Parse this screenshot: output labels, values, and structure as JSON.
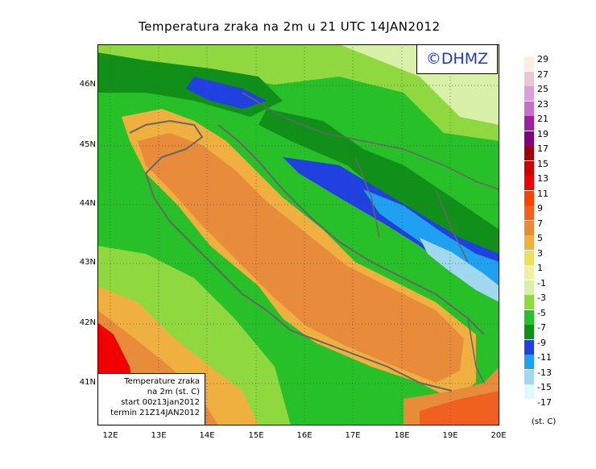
{
  "title": "Temperatura zraka na 2m u 21 UTC 14JAN2012",
  "logo_text": "©DHMZ",
  "info_box": {
    "line1": "Temperature zraka",
    "line2": "na 2m (st. C)",
    "line3": "start 00z13jan2012",
    "line4": "termin 21Z14JAN2012"
  },
  "lat_labels": [
    "46N",
    "45N",
    "44N",
    "43N",
    "42N",
    "41N"
  ],
  "lon_labels": [
    "12E",
    "13E",
    "14E",
    "15E",
    "16E",
    "17E",
    "18E",
    "19E",
    "20E"
  ],
  "legend": {
    "units": "(st. C)",
    "entries": [
      {
        "label": "29",
        "color": "#fdeee0"
      },
      {
        "label": "27",
        "color": "#e8c8d8"
      },
      {
        "label": "25",
        "color": "#dca0d8"
      },
      {
        "label": "23",
        "color": "#c870c8"
      },
      {
        "label": "21",
        "color": "#a020a0"
      },
      {
        "label": "19",
        "color": "#800080"
      },
      {
        "label": "17",
        "color": "#a00000"
      },
      {
        "label": "15",
        "color": "#d00000"
      },
      {
        "label": "13",
        "color": "#f00000"
      },
      {
        "label": "11",
        "color": "#ff4000"
      },
      {
        "label": "9",
        "color": "#f06020"
      },
      {
        "label": "7",
        "color": "#e88c3c"
      },
      {
        "label": "5",
        "color": "#f0b040"
      },
      {
        "label": "3",
        "color": "#e8e060"
      },
      {
        "label": "1",
        "color": "#f0f0a0"
      },
      {
        "label": "-1",
        "color": "#d8f0a8"
      },
      {
        "label": "-3",
        "color": "#90d840"
      },
      {
        "label": "-5",
        "color": "#28c028"
      },
      {
        "label": "-7",
        "color": "#109018"
      },
      {
        "label": "-9",
        "color": "#2040e0"
      },
      {
        "label": "-11",
        "color": "#20a0f0"
      },
      {
        "label": "-13",
        "color": "#a0d8f0"
      },
      {
        "label": "-15",
        "color": "#e0f8ff"
      },
      {
        "label": "-17",
        "color": "#ffffff"
      }
    ]
  }
}
